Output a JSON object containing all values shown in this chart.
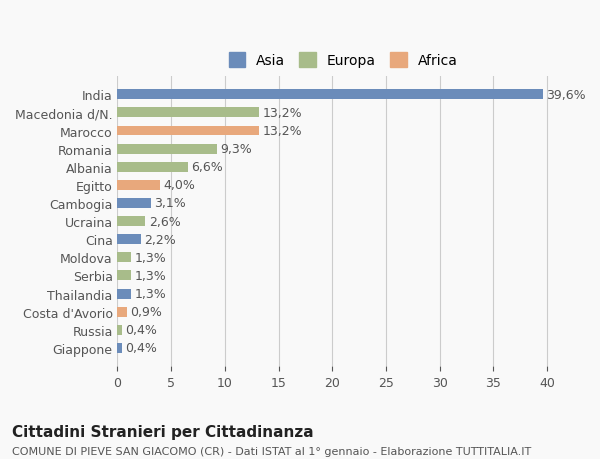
{
  "countries": [
    "Giappone",
    "Russia",
    "Costa d'Avorio",
    "Thailandia",
    "Serbia",
    "Moldova",
    "Cina",
    "Ucraina",
    "Cambogia",
    "Egitto",
    "Albania",
    "Romania",
    "Marocco",
    "Macedonia d/N.",
    "India"
  ],
  "values": [
    0.4,
    0.4,
    0.9,
    1.3,
    1.3,
    1.3,
    2.2,
    2.6,
    3.1,
    4.0,
    6.6,
    9.3,
    13.2,
    13.2,
    39.6
  ],
  "labels": [
    "0,4%",
    "0,4%",
    "0,9%",
    "1,3%",
    "1,3%",
    "1,3%",
    "2,2%",
    "2,6%",
    "3,1%",
    "4,0%",
    "6,6%",
    "9,3%",
    "13,2%",
    "13,2%",
    "39,6%"
  ],
  "continents": [
    "Asia",
    "Europa",
    "Africa",
    "Asia",
    "Europa",
    "Europa",
    "Asia",
    "Europa",
    "Asia",
    "Africa",
    "Europa",
    "Europa",
    "Africa",
    "Europa",
    "Asia"
  ],
  "colors": {
    "Asia": "#6b8cba",
    "Europa": "#a8bc8a",
    "Africa": "#e8a87c"
  },
  "legend_order": [
    "Asia",
    "Europa",
    "Africa"
  ],
  "xlim": [
    0,
    42
  ],
  "xticks": [
    0,
    5,
    10,
    15,
    20,
    25,
    30,
    35,
    40
  ],
  "title": "Cittadini Stranieri per Cittadinanza",
  "subtitle": "COMUNE DI PIEVE SAN GIACOMO (CR) - Dati ISTAT al 1° gennaio - Elaborazione TUTTITALIA.IT",
  "background_color": "#f9f9f9",
  "bar_height": 0.55,
  "grid_color": "#cccccc",
  "text_color": "#555555",
  "label_fontsize": 9,
  "tick_fontsize": 9,
  "title_fontsize": 11,
  "subtitle_fontsize": 8
}
